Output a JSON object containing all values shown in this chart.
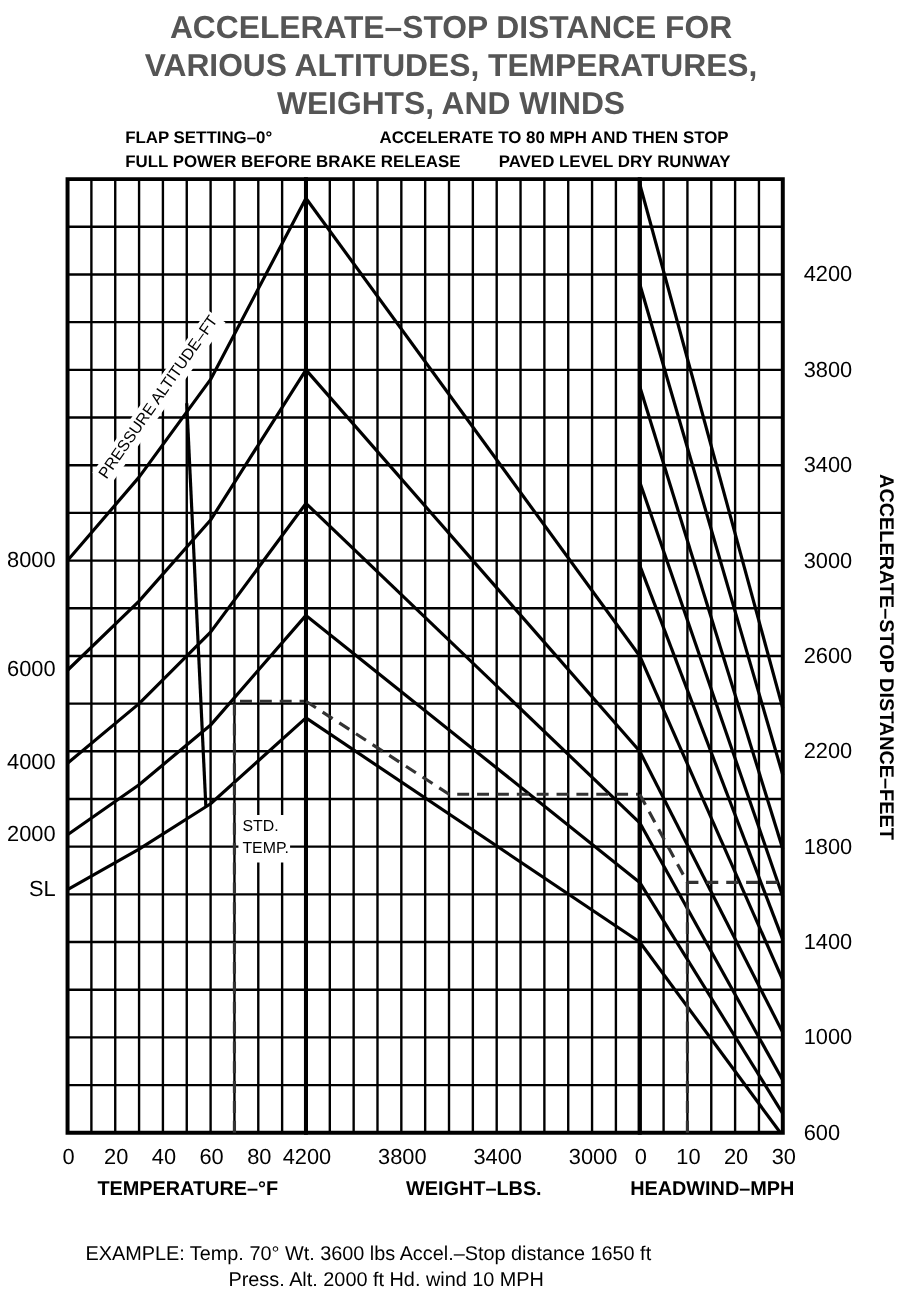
{
  "chart_data": [
    {
      "type": "line",
      "title": "ACCELERATE–STOP DISTANCE FOR\nVARIOUS ALTITUDES, TEMPERATURES,\nWEIGHTS, AND WINDS",
      "subtitle": "FLAP SETTING–0°\nFULL POWER BEFORE BRAKE RELEASE",
      "xlabel": "TEMPERATURE–°F",
      "xlim": [
        0,
        100
      ],
      "xticks": [
        0,
        {
          "value": 10,
          "label": null
        },
        20,
        {
          "value": 30,
          "label": null
        },
        40,
        {
          "value": 50,
          "label": null
        },
        60,
        {
          "value": 70,
          "label": null
        },
        80,
        {
          "value": 90,
          "label": null
        }
      ],
      "ylim": [
        600,
        4600
      ],
      "yticks": [
        600,
        {
          "value": 800,
          "label": null
        },
        1000,
        {
          "value": 1200,
          "label": null
        },
        1400,
        {
          "value": 1600,
          "label": null
        },
        1800,
        {
          "value": 2000,
          "label": null
        },
        2200,
        {
          "value": 2400,
          "label": null
        },
        2600,
        {
          "value": 2800,
          "label": null
        },
        3000,
        {
          "value": 3200,
          "label": null
        },
        3400,
        {
          "value": 3600,
          "label": null
        },
        3800,
        {
          "value": 4000,
          "label": null
        },
        4200,
        {
          "value": 4400,
          "label": null
        },
        {
          "value": 4600,
          "label": null
        }
      ],
      "tick_labels": "x",
      "grid": true,
      "annotations": [
        "PRESSURE ALTITUDE–FT",
        "STD. TEMP."
      ],
      "series": [
        {
          "name": "8000",
          "color": "#000000",
          "x": [
            0,
            30,
            60,
            100
          ],
          "values": [
            3000,
            3350,
            3760,
            4520
          ]
        },
        {
          "name": "6000",
          "color": "#000000",
          "x": [
            0,
            30,
            60,
            100
          ],
          "values": [
            2540,
            2830,
            3170,
            3800
          ]
        },
        {
          "name": "4000",
          "color": "#000000",
          "x": [
            0,
            30,
            60,
            100
          ],
          "values": [
            2150,
            2400,
            2700,
            3240
          ]
        },
        {
          "name": "2000",
          "color": "#000000",
          "x": [
            0,
            30,
            60,
            100
          ],
          "values": [
            1850,
            2060,
            2310,
            2770
          ]
        },
        {
          "name": "SL",
          "color": "#000000",
          "x": [
            0,
            30,
            60,
            100
          ],
          "values": [
            1620,
            1790,
            1980,
            2340
          ]
        },
        {
          "color": "#000000",
          "x": [
            50,
            58
          ],
          "values": [
            3660,
            1970
          ]
        },
        {
          "color": "#333333",
          "line_style": "dashed",
          "x": [
            70,
            70,
            100
          ],
          "values": [
            600,
            2410,
            2410
          ]
        }
      ]
    },
    {
      "type": "line",
      "subtitle": "ACCELERATE TO 80 MPH AND THEN STOP\nPAVED LEVEL DRY RUNWAY",
      "xlabel": "WEIGHT–LBS.",
      "xlim": [
        4200,
        2800
      ],
      "xticks": [
        4200,
        {
          "value": 4100,
          "label": null
        },
        {
          "value": 4000,
          "label": null
        },
        {
          "value": 3900,
          "label": null
        },
        3800,
        {
          "value": 3700,
          "label": null
        },
        {
          "value": 3600,
          "label": null
        },
        {
          "value": 3500,
          "label": null
        },
        3400,
        {
          "value": 3300,
          "label": null
        },
        {
          "value": 3200,
          "label": null
        },
        {
          "value": 3100,
          "label": null
        },
        3000,
        {
          "value": 2900,
          "label": null
        }
      ],
      "ylim": [
        600,
        4600
      ],
      "yticks": [
        600,
        {
          "value": 800,
          "label": null
        },
        1000,
        {
          "value": 1200,
          "label": null
        },
        1400,
        {
          "value": 1600,
          "label": null
        },
        1800,
        {
          "value": 2000,
          "label": null
        },
        2200,
        {
          "value": 2400,
          "label": null
        },
        2600,
        {
          "value": 2800,
          "label": null
        },
        3000,
        {
          "value": 3200,
          "label": null
        },
        3400,
        {
          "value": 3600,
          "label": null
        },
        3800,
        {
          "value": 4000,
          "label": null
        },
        4200,
        {
          "value": 4400,
          "label": null
        },
        {
          "value": 4600,
          "label": null
        }
      ],
      "tick_labels": "x",
      "grid": true,
      "annotations": [
        "EXAMPLE:    Temp. 70°    Wt. 3600 lbs  Accel.–Stop distance 1650 ft\nPress. Alt. 2000 ft   Hd. wind 10 MPH"
      ],
      "series": [
        {
          "color": "#000000",
          "x": [
            4200,
            2800
          ],
          "values": [
            4520,
            2600
          ]
        },
        {
          "color": "#000000",
          "x": [
            4200,
            2800
          ],
          "values": [
            3800,
            2200
          ]
        },
        {
          "color": "#000000",
          "x": [
            4200,
            2800
          ],
          "values": [
            3240,
            1900
          ]
        },
        {
          "color": "#000000",
          "x": [
            4200,
            2800
          ],
          "values": [
            2770,
            1650
          ]
        },
        {
          "color": "#000000",
          "x": [
            4200,
            2800
          ],
          "values": [
            2340,
            1400
          ]
        },
        {
          "color": "#333333",
          "line_style": "dashed",
          "x": [
            4200,
            3600,
            2800
          ],
          "values": [
            2410,
            2020,
            2020
          ]
        }
      ]
    },
    {
      "type": "line",
      "xlabel": "HEADWIND–MPH",
      "ylabel": "ACCELERATE–STOP DISTANCE–FEET",
      "xlim": [
        0,
        30
      ],
      "xticks": [
        0,
        {
          "value": 5,
          "label": null
        },
        10,
        {
          "value": 15,
          "label": null
        },
        20,
        {
          "value": 25,
          "label": null
        },
        30
      ],
      "ylim": [
        600,
        4600
      ],
      "yticks": [
        600,
        {
          "value": 800,
          "label": null
        },
        1000,
        {
          "value": 1200,
          "label": null
        },
        1400,
        {
          "value": 1600,
          "label": null
        },
        1800,
        {
          "value": 2000,
          "label": null
        },
        2200,
        {
          "value": 2400,
          "label": null
        },
        2600,
        {
          "value": 2800,
          "label": null
        },
        3000,
        {
          "value": 3200,
          "label": null
        },
        3400,
        {
          "value": 3600,
          "label": null
        },
        3800,
        {
          "value": 4000,
          "label": null
        },
        4200,
        {
          "value": 4400,
          "label": null
        },
        {
          "value": 4600,
          "label": null
        }
      ],
      "grid": true,
      "series": [
        {
          "color": "#000000",
          "x": [
            0,
            30
          ],
          "values": [
            4580,
            2380
          ]
        },
        {
          "color": "#000000",
          "x": [
            0,
            30
          ],
          "values": [
            4160,
            2100
          ]
        },
        {
          "color": "#000000",
          "x": [
            0,
            30
          ],
          "values": [
            3730,
            1790
          ]
        },
        {
          "color": "#000000",
          "x": [
            0,
            30
          ],
          "values": [
            3330,
            1590
          ]
        },
        {
          "color": "#000000",
          "x": [
            0,
            30
          ],
          "values": [
            2980,
            1410
          ]
        },
        {
          "color": "#000000",
          "x": [
            0,
            30
          ],
          "values": [
            2600,
            1240
          ]
        },
        {
          "color": "#000000",
          "x": [
            0,
            30
          ],
          "values": [
            2200,
            1020
          ]
        },
        {
          "color": "#000000",
          "x": [
            0,
            30
          ],
          "values": [
            1900,
            820
          ]
        },
        {
          "color": "#000000",
          "x": [
            0,
            30
          ],
          "values": [
            1650,
            680
          ]
        },
        {
          "color": "#000000",
          "x": [
            0,
            29.5
          ],
          "values": [
            1400,
            600
          ]
        },
        {
          "color": "#333333",
          "line_style": "dashed",
          "x": [
            0,
            10,
            30
          ],
          "values": [
            2020,
            1650,
            1650
          ]
        },
        {
          "color": "#333333",
          "line_style": "dashed",
          "x": [
            10,
            10
          ],
          "values": [
            600,
            1650
          ]
        }
      ]
    }
  ]
}
